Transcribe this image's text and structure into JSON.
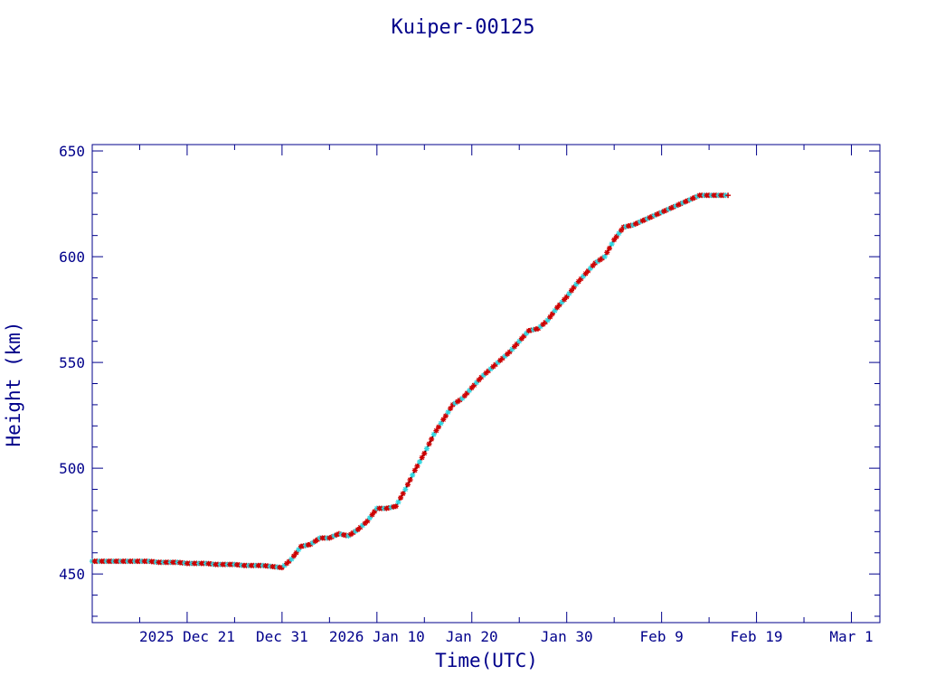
{
  "chart_data": {
    "type": "scatter",
    "title": "Kuiper-00125",
    "xlabel": "Time(UTC)",
    "ylabel": "Height (km)",
    "xlim": [
      "2025-12-11",
      "2026-03-04"
    ],
    "ylim": [
      427,
      653
    ],
    "xticks": [
      {
        "date": "2025-12-21",
        "label": "2025 Dec 21"
      },
      {
        "date": "2025-12-31",
        "label": "Dec 31"
      },
      {
        "date": "2026-01-10",
        "label": "2026 Jan 10"
      },
      {
        "date": "2026-01-20",
        "label": "Jan 20"
      },
      {
        "date": "2026-01-30",
        "label": "Jan 30"
      },
      {
        "date": "2026-02-09",
        "label": "Feb  9"
      },
      {
        "date": "2026-02-19",
        "label": "Feb 19"
      },
      {
        "date": "2026-03-01",
        "label": "Mar  1"
      }
    ],
    "yticks": [
      450,
      500,
      550,
      600,
      650
    ],
    "grid": false,
    "colors": {
      "axis": "#00008b",
      "line": "#000000",
      "marker_a": "#cc0000",
      "marker_b": "#33d6e0"
    },
    "series": [
      {
        "x": [
          "2025-12-11",
          "2025-12-12",
          "2025-12-13",
          "2025-12-14",
          "2025-12-15",
          "2025-12-16",
          "2025-12-17",
          "2025-12-18",
          "2025-12-19",
          "2025-12-20",
          "2025-12-21",
          "2025-12-22",
          "2025-12-23",
          "2025-12-24",
          "2025-12-25",
          "2025-12-26",
          "2025-12-27",
          "2025-12-28",
          "2025-12-29",
          "2025-12-30",
          "2025-12-31",
          "2026-01-01",
          "2026-01-02",
          "2026-01-03",
          "2026-01-04",
          "2026-01-05",
          "2026-01-06",
          "2026-01-07",
          "2026-01-08",
          "2026-01-09",
          "2026-01-10",
          "2026-01-11",
          "2026-01-12",
          "2026-01-13",
          "2026-01-14",
          "2026-01-15",
          "2026-01-16",
          "2026-01-17",
          "2026-01-18",
          "2026-01-19",
          "2026-01-20",
          "2026-01-21",
          "2026-01-22",
          "2026-01-23",
          "2026-01-24",
          "2026-01-25",
          "2026-01-26",
          "2026-01-27",
          "2026-01-28",
          "2026-01-29",
          "2026-01-30",
          "2026-01-31",
          "2026-02-01",
          "2026-02-02",
          "2026-02-03",
          "2026-02-04",
          "2026-02-05",
          "2026-02-06",
          "2026-02-07",
          "2026-02-08",
          "2026-02-09",
          "2026-02-10",
          "2026-02-11",
          "2026-02-12",
          "2026-02-13",
          "2026-02-14",
          "2026-02-15",
          "2026-02-16"
        ],
        "y": [
          456,
          456,
          456,
          456,
          456,
          456,
          456,
          455.5,
          455.5,
          455.5,
          455,
          455,
          455,
          454.5,
          454.5,
          454.5,
          454,
          454,
          454,
          453.5,
          453,
          457,
          463,
          464,
          467,
          467,
          469,
          468,
          471,
          475,
          481,
          481,
          482,
          490,
          499,
          507,
          516,
          523,
          530,
          533,
          538,
          543,
          547,
          551,
          555,
          560,
          565,
          566,
          570,
          576,
          581,
          587,
          592,
          597,
          600,
          608,
          614,
          615,
          617,
          619,
          621,
          623,
          625,
          627,
          629,
          629,
          629,
          629
        ]
      }
    ]
  }
}
